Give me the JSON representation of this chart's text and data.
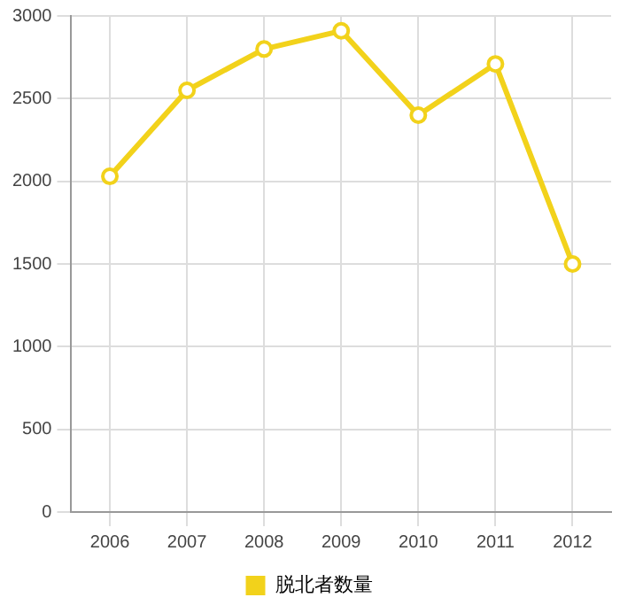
{
  "chart_data": {
    "type": "line",
    "categories": [
      "2006",
      "2007",
      "2008",
      "2009",
      "2010",
      "2011",
      "2012"
    ],
    "series": [
      {
        "name": "脱北者数量",
        "color": "#f2d21b",
        "values": [
          2030,
          2550,
          2800,
          2910,
          2400,
          2710,
          1500
        ]
      }
    ],
    "ylim": [
      0,
      3000
    ],
    "yticks": [
      0,
      500,
      1000,
      1500,
      2000,
      2500,
      3000
    ],
    "grid": true,
    "legend": "bottom",
    "marker": "circle",
    "line_style": "solid"
  }
}
